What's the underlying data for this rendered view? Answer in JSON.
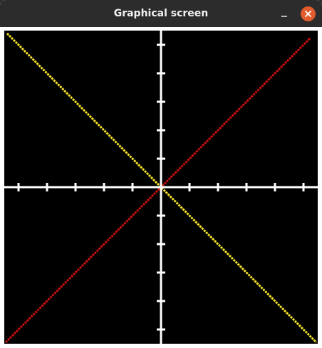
{
  "window": {
    "title": "Graphical screen"
  },
  "titlebar_buttons": {
    "minimize_icon": "minimize-icon",
    "close_icon": "close-icon"
  },
  "colors": {
    "titlebar": "#2c2c2c",
    "close_button": "#e05c2d",
    "canvas_background": "#000000",
    "axes": "#ffffff",
    "line_positive_slope": "#d01010",
    "line_negative_slope": "#f2e22a"
  },
  "chart_data": {
    "type": "line",
    "title": "",
    "xlabel": "",
    "ylabel": "",
    "xlim": [
      -11,
      11
    ],
    "ylim": [
      -11,
      11
    ],
    "x_ticks": [
      -10,
      -8,
      -6,
      -4,
      -2,
      2,
      4,
      6,
      8,
      10
    ],
    "y_ticks": [
      -10,
      -8,
      -6,
      -4,
      -2,
      2,
      4,
      6,
      8,
      10
    ],
    "grid": false,
    "series": [
      {
        "x": [
          -10.9,
          10.5
        ],
        "y": [
          -10.9,
          10.5
        ],
        "color": "#d01010"
      },
      {
        "x": [
          -10.8,
          10.9
        ],
        "y": [
          10.8,
          -10.9
        ],
        "color": "#f2e22a"
      }
    ]
  }
}
